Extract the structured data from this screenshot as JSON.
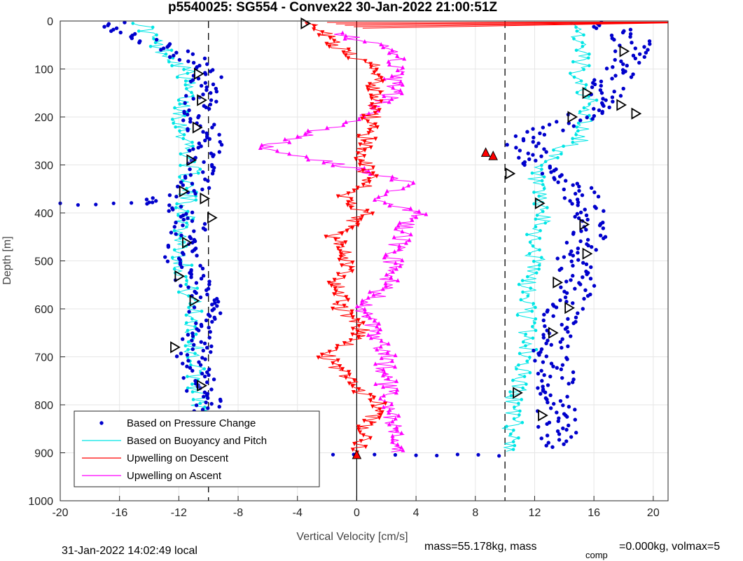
{
  "chart_data": {
    "type": "line",
    "title": "p5540025: SG554 - Convex22 30-Jan-2022 21:00:51Z",
    "xlabel": "Vertical Velocity [cm/s]",
    "ylabel": "Depth [m]",
    "xlim": [
      -20,
      21
    ],
    "ylim": [
      0,
      1000
    ],
    "y_reversed": true,
    "xticks": [
      -20,
      -16,
      -12,
      -8,
      -4,
      0,
      4,
      8,
      12,
      16,
      20
    ],
    "yticks": [
      0,
      100,
      200,
      300,
      400,
      500,
      600,
      700,
      800,
      900,
      1000
    ],
    "grid": true,
    "legend_position": "bottom-left",
    "reference_lines": {
      "dashed_x": [
        -10,
        10
      ],
      "solid_x": [
        0
      ]
    },
    "series": [
      {
        "name": "Based on Pressure Change",
        "color": "#0000cc",
        "style": "dots",
        "down_depth": [
          0,
          50,
          100,
          150,
          200,
          250,
          300,
          350,
          380,
          400,
          450,
          500,
          550,
          600,
          650,
          700,
          750,
          800,
          850,
          890
        ],
        "down_values": [
          -17,
          -13.5,
          -9.8,
          -10.5,
          -10.8,
          -10.2,
          -10.5,
          -11,
          -14,
          -11,
          -11.5,
          -11.8,
          -11,
          -10.2,
          -10.8,
          -11,
          -10.5,
          -10,
          -10.5,
          -10.8
        ],
        "up_depth": [
          0,
          50,
          100,
          150,
          200,
          250,
          300,
          350,
          400,
          450,
          500,
          550,
          600,
          650,
          700,
          750,
          800,
          850,
          890
        ],
        "up_values": [
          16.5,
          19,
          17.5,
          17,
          15,
          11,
          12.5,
          15,
          15.5,
          15.5,
          14.5,
          15,
          14,
          13.5,
          13,
          13.5,
          13.5,
          13.5,
          13.5
        ]
      },
      {
        "name": "Based on Buoyancy and Pitch",
        "color": "#00e5e5",
        "style": "line-dots",
        "down_depth": [
          0,
          50,
          100,
          150,
          200,
          250,
          300,
          350,
          400,
          450,
          500,
          550,
          600,
          650,
          700,
          750,
          800,
          850,
          900
        ],
        "down_values": [
          -14.5,
          -13.5,
          -11.5,
          -11.5,
          -11.8,
          -11.5,
          -11.2,
          -11.5,
          -11.5,
          -11.8,
          -11.8,
          -11.5,
          -11,
          -11,
          -11,
          -10.8,
          -10.5,
          -11,
          -10.5
        ],
        "up_depth": [
          0,
          50,
          100,
          150,
          200,
          250,
          300,
          350,
          400,
          450,
          500,
          550,
          600,
          650,
          700,
          750,
          800,
          850,
          900
        ],
        "up_values": [
          15,
          15,
          15,
          15.5,
          15.5,
          15,
          12,
          12,
          12.5,
          12,
          12,
          11.5,
          11.5,
          11.5,
          11.5,
          11,
          10.5,
          10.5,
          10.5
        ]
      },
      {
        "name": "Upwelling on Descent",
        "color": "#ff0000",
        "style": "line-triangle-down",
        "depth": [
          5,
          30,
          60,
          100,
          150,
          200,
          260,
          300,
          340,
          370,
          400,
          450,
          500,
          550,
          600,
          650,
          700,
          750,
          800,
          850,
          900
        ],
        "values": [
          -3,
          -2,
          -1,
          1.5,
          1.2,
          1,
          0.5,
          0.5,
          1,
          -1,
          0.5,
          -1.5,
          -0.5,
          -1.5,
          -1,
          0.5,
          -2,
          -0.5,
          1.5,
          0.5,
          0
        ],
        "peak_events": [
          {
            "depth": 275,
            "x": 8.7
          },
          {
            "depth": 282,
            "x": 9.2
          },
          {
            "depth": 905,
            "x": 0
          }
        ]
      },
      {
        "name": "Upwelling on Ascent",
        "color": "#ff00ff",
        "style": "line-triangle-up",
        "depth": [
          30,
          60,
          100,
          150,
          200,
          265,
          300,
          340,
          370,
          400,
          450,
          500,
          550,
          600,
          650,
          700,
          750,
          800,
          850,
          900
        ],
        "values": [
          -1,
          3,
          2.5,
          2.5,
          0.5,
          -6.5,
          -1,
          3.5,
          1.5,
          4,
          3,
          2.5,
          2,
          0.5,
          1,
          2,
          2,
          2,
          2.5,
          2.5
        ]
      },
      {
        "name": "Pitch-up markers",
        "color": "#000000",
        "style": "open-triangle",
        "down_depth": [
          110,
          165,
          222,
          290,
          355,
          370,
          410,
          462,
          532,
          583,
          680,
          760,
          828,
          870,
          900
        ],
        "down_values": [
          -10.7,
          -10.5,
          -10.8,
          -11.2,
          -11.7,
          -10.3,
          -9.8,
          -11.5,
          -12,
          -11,
          -12.3,
          -10.5,
          -11.5,
          -9.8,
          -10
        ],
        "up_depth": [
          5,
          63,
          150,
          175,
          193,
          200,
          318,
          380,
          424,
          485,
          545,
          598,
          650,
          775,
          822
        ],
        "up_values": [
          -3.5,
          18,
          15.5,
          17.8,
          18.8,
          14.5,
          10.3,
          12.3,
          15.3,
          15.5,
          13.5,
          14.3,
          13.2,
          10.8,
          12.5
        ]
      }
    ]
  },
  "footer": {
    "local_time": "31-Jan-2022 14:02:49 local",
    "mass_text": "mass=55.178kg, mass",
    "comp_subscript": "comp",
    "comp_text": "=0.000kg, volmax=5"
  }
}
